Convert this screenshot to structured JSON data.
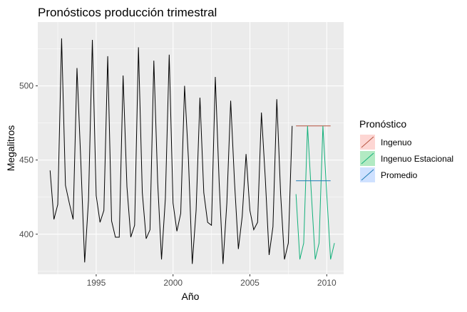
{
  "chart_data": {
    "type": "line",
    "title": "Pronósticos producción trimestral",
    "xlabel": "Año",
    "ylabel": "Megalitros",
    "xlim": [
      1991.2,
      2011.1
    ],
    "ylim": [
      373,
      543
    ],
    "x_ticks": [
      1995,
      2000,
      2005,
      2010
    ],
    "x_tick_labels": [
      "1995",
      "2000",
      "2005",
      "2010"
    ],
    "y_ticks": [
      400,
      450,
      500
    ],
    "y_tick_labels": [
      "400",
      "450",
      "500"
    ],
    "minor_x_ticks": [
      1992.5,
      1997.5,
      2002.5,
      2007.5
    ],
    "minor_y_ticks": [
      375,
      425,
      475,
      525
    ],
    "grid": true,
    "panel_background": "#ebebeb",
    "grid_color": "#ffffff",
    "legend_position": "right",
    "legend_title": "Pronóstico",
    "history": {
      "color": "#000000",
      "start": 1992.0,
      "step": 0.25,
      "values": [
        443,
        410,
        420,
        532,
        433,
        421,
        410,
        512,
        449,
        381,
        423,
        531,
        426,
        408,
        416,
        520,
        409,
        398,
        398,
        507,
        432,
        398,
        406,
        526,
        428,
        397,
        403,
        517,
        435,
        383,
        424,
        521,
        421,
        402,
        414,
        500,
        451,
        380,
        416,
        492,
        428,
        408,
        406,
        506,
        435,
        380,
        421,
        490,
        435,
        390,
        412,
        454,
        416,
        403,
        408,
        482,
        438,
        386,
        405,
        491,
        427,
        383,
        394,
        473
      ]
    },
    "series": [
      {
        "name": "Ingenuo",
        "color": "#f8766d",
        "line_color": "#b5523d",
        "start": 2008.0,
        "step": 0.25,
        "values": [
          473,
          473,
          473,
          473,
          473,
          473,
          473,
          473,
          473,
          473
        ]
      },
      {
        "name": "Ingenuo Estacional",
        "color": "#00ba38",
        "line_color": "#13b07a",
        "start": 2008.0,
        "step": 0.25,
        "values": [
          427,
          383,
          394,
          473,
          427,
          383,
          394,
          473,
          427,
          383,
          394
        ]
      },
      {
        "name": "Promedio",
        "color": "#619cff",
        "line_color": "#1a7ab3",
        "start": 2008.0,
        "step": 0.25,
        "values": [
          436,
          436,
          436,
          436,
          436,
          436,
          436,
          436,
          436,
          436
        ]
      }
    ]
  }
}
